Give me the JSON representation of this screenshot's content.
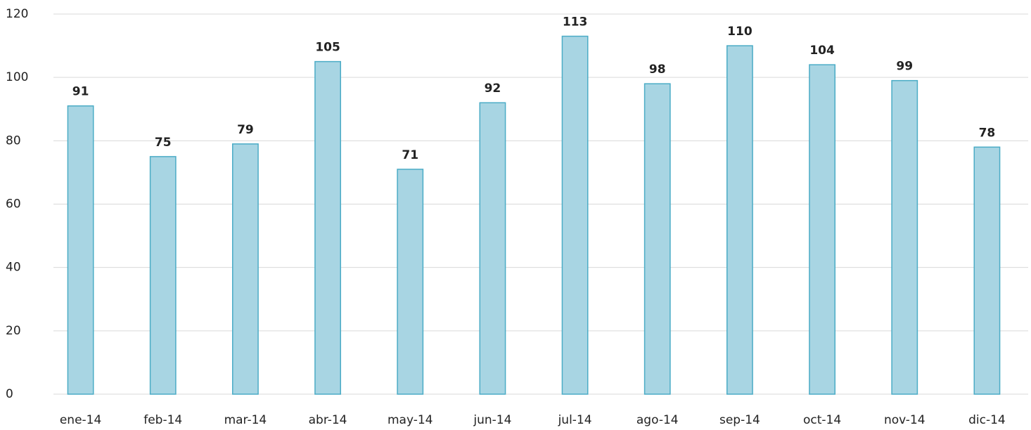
{
  "chart_data": {
    "type": "bar",
    "categories": [
      "ene-14",
      "feb-14",
      "mar-14",
      "abr-14",
      "may-14",
      "jun-14",
      "jul-14",
      "ago-14",
      "sep-14",
      "oct-14",
      "nov-14",
      "dic-14"
    ],
    "values": [
      91,
      75,
      79,
      105,
      71,
      92,
      113,
      98,
      110,
      104,
      99,
      78
    ],
    "color": "#a8d5e3",
    "edge_color": "#4bacc6",
    "ylim": [
      0,
      120
    ],
    "yticks": [
      0,
      20,
      40,
      60,
      80,
      100,
      120
    ],
    "grid": true
  }
}
